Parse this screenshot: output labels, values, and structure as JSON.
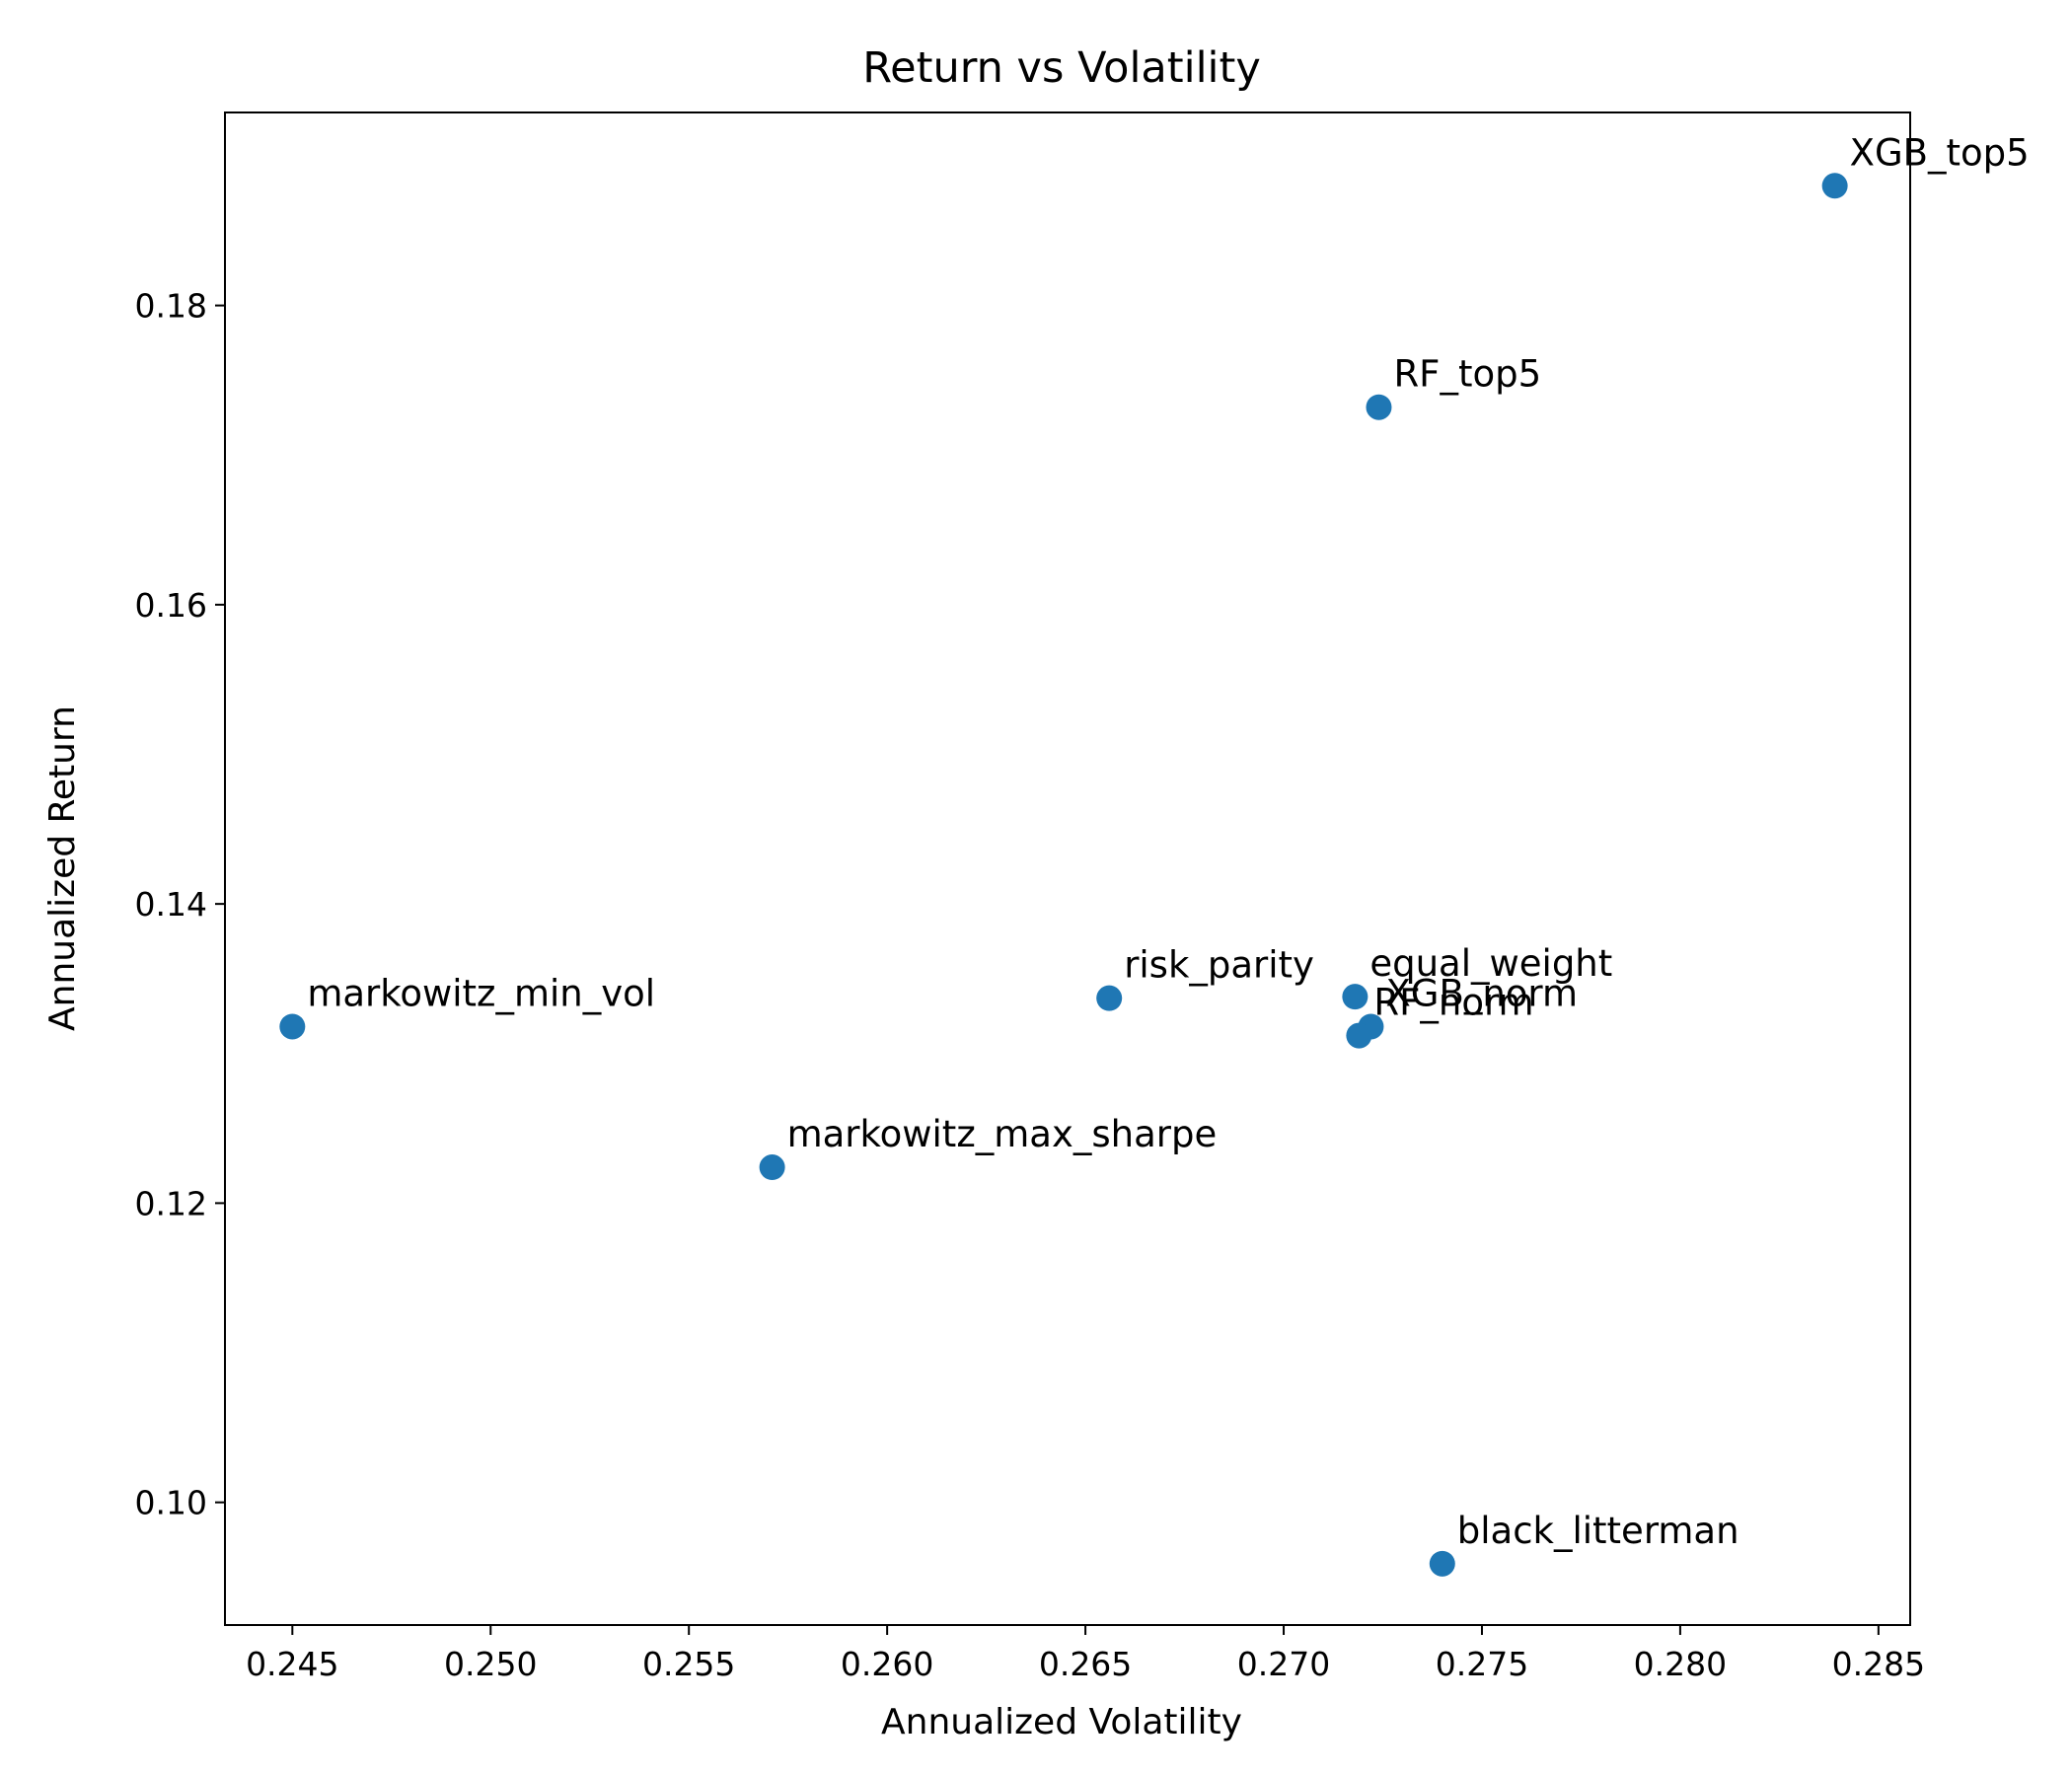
{
  "chart_data": {
    "type": "scatter",
    "title": "Return vs Volatility",
    "xlabel": "Annualized Volatility",
    "ylabel": "Annualized Return",
    "xlim": [
      0.2433,
      0.2858
    ],
    "ylim": [
      0.0918,
      0.1929
    ],
    "xticks": [
      "0.245",
      "0.250",
      "0.255",
      "0.260",
      "0.265",
      "0.270",
      "0.275",
      "0.280",
      "0.285"
    ],
    "yticks": [
      "0.10",
      "0.12",
      "0.14",
      "0.16",
      "0.18"
    ],
    "grid": false,
    "legend": "none",
    "point_color": "#1f77b4",
    "points": [
      {
        "label": "XGB_top5",
        "x": 0.2839,
        "y": 0.188
      },
      {
        "label": "RF_top5",
        "x": 0.2724,
        "y": 0.1732
      },
      {
        "label": "risk_parity",
        "x": 0.2656,
        "y": 0.1337
      },
      {
        "label": "equal_weight",
        "x": 0.2718,
        "y": 0.1338
      },
      {
        "label": "XGB_norm",
        "x": 0.2722,
        "y": 0.1318
      },
      {
        "label": "RF_norm",
        "x": 0.2719,
        "y": 0.1312
      },
      {
        "label": "markowitz_min_vol",
        "x": 0.245,
        "y": 0.1318
      },
      {
        "label": "markowitz_max_sharpe",
        "x": 0.2571,
        "y": 0.1224
      },
      {
        "label": "black_litterman",
        "x": 0.274,
        "y": 0.0959
      }
    ]
  }
}
